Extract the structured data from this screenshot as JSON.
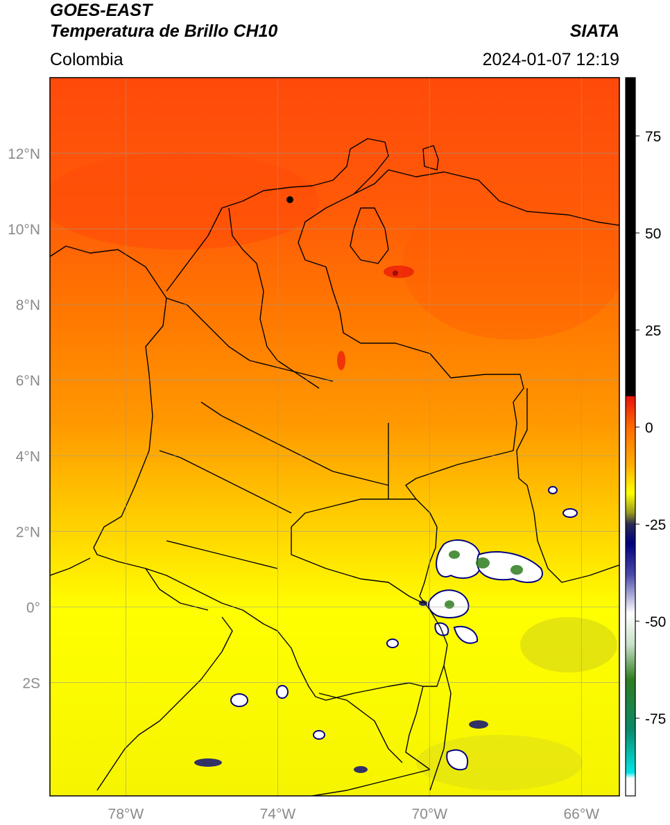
{
  "header": {
    "satellite": "GOES-EAST",
    "product": "Temperatura de Brillo CH10",
    "region": "Colombia",
    "organization": "SIATA",
    "datetime": "2024-01-07 12:19"
  },
  "map": {
    "lon_range": [
      -80,
      -65
    ],
    "lat_range": [
      -5,
      14
    ],
    "lon_ticks": [
      {
        "value": -78,
        "label": "78°W"
      },
      {
        "value": -74,
        "label": "74°W"
      },
      {
        "value": -70,
        "label": "70°W"
      },
      {
        "value": -66,
        "label": "66°W"
      }
    ],
    "lat_ticks": [
      {
        "value": 12,
        "label": "12°N"
      },
      {
        "value": 10,
        "label": "10°N"
      },
      {
        "value": 8,
        "label": "8°N"
      },
      {
        "value": 6,
        "label": "6°N"
      },
      {
        "value": 4,
        "label": "4°N"
      },
      {
        "value": 2,
        "label": "2°N"
      },
      {
        "value": 0,
        "label": "0°"
      },
      {
        "value": -2,
        "label": "2S"
      }
    ],
    "grid": true,
    "cloud_color": "#ffffff",
    "high_color": "#000000"
  },
  "colorbar": {
    "range": [
      -95,
      90
    ],
    "ticks": [
      {
        "value": 75,
        "label": "75"
      },
      {
        "value": 50,
        "label": "50"
      },
      {
        "value": 25,
        "label": "25"
      },
      {
        "value": 0,
        "label": "0"
      },
      {
        "value": -25,
        "label": "-25"
      },
      {
        "value": -50,
        "label": "-50"
      },
      {
        "value": -75,
        "label": "-75"
      }
    ],
    "stops": [
      {
        "value": 90,
        "color": "#000000"
      },
      {
        "value": 8,
        "color": "#000000"
      },
      {
        "value": 7.9,
        "color": "#e8120a"
      },
      {
        "value": 0,
        "color": "#ff6a00"
      },
      {
        "value": -10,
        "color": "#ffb000"
      },
      {
        "value": -17,
        "color": "#ffff00"
      },
      {
        "value": -22,
        "color": "#9a9a20"
      },
      {
        "value": -25,
        "color": "#2a2a50"
      },
      {
        "value": -30,
        "color": "#000080"
      },
      {
        "value": -38,
        "color": "#4a4aa8"
      },
      {
        "value": -48,
        "color": "#ffffff"
      },
      {
        "value": -56,
        "color": "#c8e0c8"
      },
      {
        "value": -65,
        "color": "#2e7d1e"
      },
      {
        "value": -78,
        "color": "#0a8a6a"
      },
      {
        "value": -89,
        "color": "#00e6e6"
      },
      {
        "value": -90.5,
        "color": "#ffffff"
      },
      {
        "value": -95,
        "color": "#ffffff"
      }
    ]
  }
}
